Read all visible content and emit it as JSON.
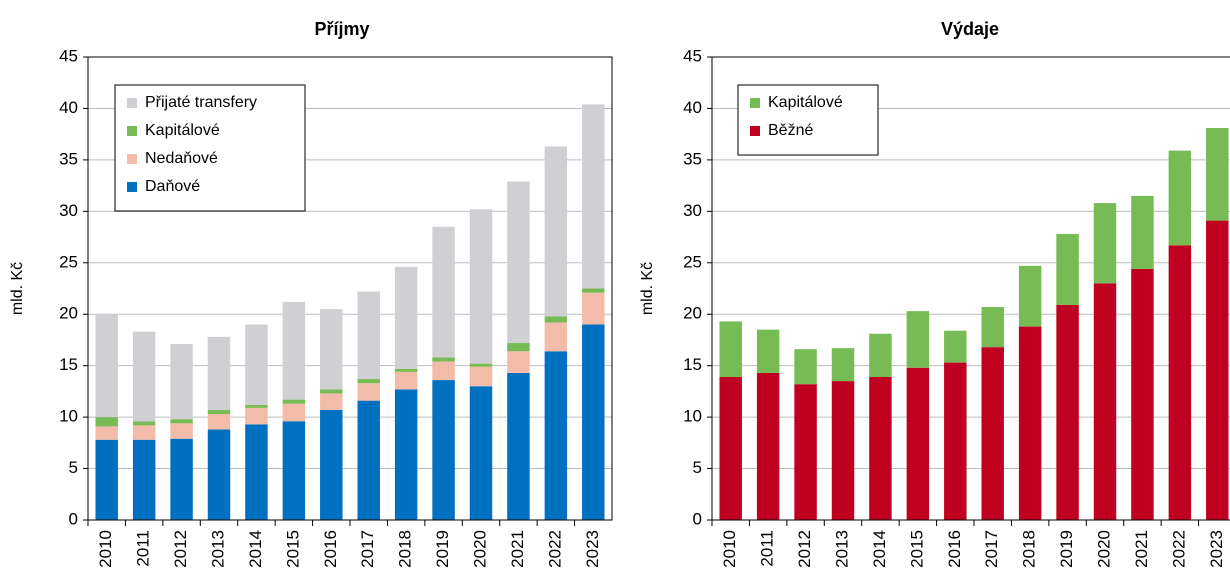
{
  "chart_data": [
    {
      "type": "stacked-bar",
      "title": "Příjmy",
      "y_label": "mld. Kč",
      "categories": [
        "2010",
        "2011",
        "2012",
        "2013",
        "2014",
        "2015",
        "2016",
        "2017",
        "2018",
        "2019",
        "2020",
        "2021",
        "2022",
        "2023"
      ],
      "series": [
        {
          "name": "Daňové",
          "color": "#0070c0",
          "values": [
            7.8,
            7.8,
            7.9,
            8.8,
            9.3,
            9.6,
            10.7,
            11.6,
            12.7,
            13.6,
            13.0,
            14.3,
            16.4,
            19.0
          ]
        },
        {
          "name": "Nedaňové",
          "color": "#f2bca8",
          "values": [
            1.3,
            1.4,
            1.5,
            1.5,
            1.6,
            1.7,
            1.6,
            1.7,
            1.7,
            1.8,
            1.9,
            2.1,
            2.8,
            3.1
          ]
        },
        {
          "name": "Kapitálové",
          "color": "#77bb55",
          "values": [
            0.9,
            0.4,
            0.4,
            0.4,
            0.3,
            0.4,
            0.4,
            0.4,
            0.3,
            0.4,
            0.3,
            0.8,
            0.6,
            0.4
          ]
        },
        {
          "name": "Přijaté transfery",
          "color": "#d0d0d4",
          "values": [
            10.0,
            8.7,
            7.3,
            7.1,
            7.8,
            9.5,
            7.8,
            8.5,
            9.9,
            12.7,
            15.0,
            15.7,
            16.5,
            17.9
          ]
        }
      ],
      "ylim": [
        0,
        45
      ],
      "yticks": [
        0,
        5,
        10,
        15,
        20,
        25,
        30,
        35,
        40,
        45
      ],
      "grid": true,
      "legend": "upper-left"
    },
    {
      "type": "stacked-bar",
      "title": "Výdaje",
      "y_label": "mld. Kč",
      "categories": [
        "2010",
        "2011",
        "2012",
        "2013",
        "2014",
        "2015",
        "2016",
        "2017",
        "2018",
        "2019",
        "2020",
        "2021",
        "2022",
        "2023"
      ],
      "series": [
        {
          "name": "Běžné",
          "color": "#c00020",
          "values": [
            13.9,
            14.3,
            13.2,
            13.5,
            13.9,
            14.8,
            15.3,
            16.8,
            18.8,
            20.9,
            23.0,
            24.4,
            26.7,
            29.1
          ]
        },
        {
          "name": "Kapitálové",
          "color": "#77bb55",
          "values": [
            5.4,
            4.2,
            3.4,
            3.2,
            4.2,
            5.5,
            3.1,
            3.9,
            5.9,
            6.9,
            7.8,
            7.1,
            9.2,
            9.0
          ]
        }
      ],
      "ylim": [
        0,
        45
      ],
      "yticks": [
        0,
        5,
        10,
        15,
        20,
        25,
        30,
        35,
        40,
        45
      ],
      "grid": true,
      "legend": "upper-left"
    }
  ]
}
